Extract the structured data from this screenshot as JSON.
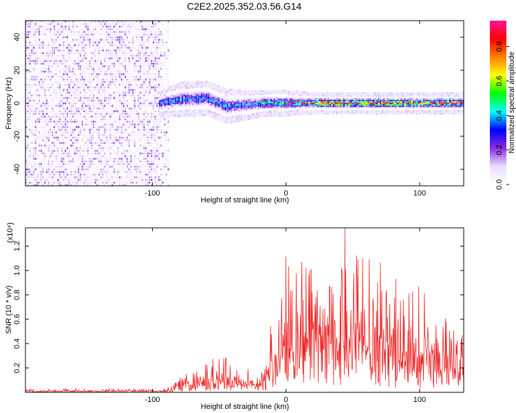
{
  "title": "C2E2.2025.352.03.56.G14",
  "chart_data": [
    {
      "type": "heatmap",
      "title": "C2E2.2025.352.03.56.G14",
      "xlabel": "Height of straight line (km)",
      "ylabel": "Frequency (Hz)",
      "xlim": [
        -195,
        133
      ],
      "ylim": [
        -50,
        50
      ],
      "xticks": [
        -100,
        0,
        100
      ],
      "xtick_labels": [
        "-100",
        "0",
        "100"
      ],
      "yticks": [
        40,
        20,
        0,
        -20,
        -40
      ],
      "ytick_labels": [
        "40",
        "20",
        "0",
        "-20",
        "-40"
      ],
      "noise_region_x": [
        -195,
        -88
      ],
      "signal_band": {
        "x": [
          -95,
          -80,
          -60,
          -45,
          -30,
          -15,
          0,
          20,
          50,
          80,
          110,
          133
        ],
        "center_hz": [
          0,
          2,
          3,
          -2,
          -1,
          0,
          0,
          0,
          0,
          0,
          0,
          0
        ],
        "halfwidth_hz": [
          3,
          4,
          4,
          4,
          3.5,
          3,
          3,
          2.5,
          2.5,
          2.5,
          2.5,
          2.5
        ]
      },
      "colorbar": {
        "label": "Normalized spectral amplitude",
        "range": [
          0,
          0.95
        ],
        "ticks": [
          0.0,
          0.2,
          0.4,
          0.6,
          0.8
        ],
        "tick_labels": [
          "0.0",
          "0.2",
          "0.4",
          "0.6",
          "0.8"
        ],
        "colors": [
          "#ffffff",
          "#e9ddff",
          "#8a2be2",
          "#0000ff",
          "#00ffff",
          "#00ff00",
          "#ffff00",
          "#ff8000",
          "#ff0000",
          "#ff1493"
        ]
      }
    },
    {
      "type": "line",
      "xlabel": "Height of straight line (km)",
      "ylabel": "SNR (10 * v/v)",
      "y_multiplier_label": "(x10⁴)",
      "xlim": [
        -195,
        133
      ],
      "ylim": [
        0,
        1.35
      ],
      "xticks": [
        -100,
        0,
        100
      ],
      "xtick_labels": [
        "-100",
        "0",
        "100"
      ],
      "yticks": [
        0.2,
        0.4,
        0.6,
        0.8,
        1.0,
        1.2
      ],
      "ytick_labels": [
        "0.2",
        "0.4",
        "0.6",
        "0.8",
        "1.0",
        "1.2"
      ],
      "line_color": "#ee2222",
      "envelope": {
        "x": [
          -195,
          -90,
          -85,
          -75,
          -60,
          -50,
          -45,
          -40,
          -30,
          -20,
          -15,
          -12,
          -5,
          0,
          10,
          20,
          30,
          40,
          45,
          50,
          60,
          70,
          80,
          90,
          100,
          110,
          120,
          133
        ],
        "max": [
          0.03,
          0.03,
          0.08,
          0.15,
          0.25,
          0.32,
          0.3,
          0.22,
          0.2,
          0.18,
          0.25,
          0.55,
          0.75,
          1.12,
          1.1,
          1.05,
          1.0,
          1.1,
          1.35,
          1.2,
          1.15,
          1.1,
          1.0,
          0.95,
          0.9,
          0.7,
          0.6,
          0.55
        ],
        "mean": [
          0.01,
          0.01,
          0.03,
          0.07,
          0.1,
          0.12,
          0.1,
          0.08,
          0.07,
          0.07,
          0.09,
          0.2,
          0.27,
          0.35,
          0.4,
          0.42,
          0.42,
          0.43,
          0.48,
          0.45,
          0.42,
          0.4,
          0.38,
          0.36,
          0.34,
          0.3,
          0.27,
          0.25
        ]
      },
      "peak": {
        "x": 44,
        "y": 1.35
      }
    }
  ]
}
